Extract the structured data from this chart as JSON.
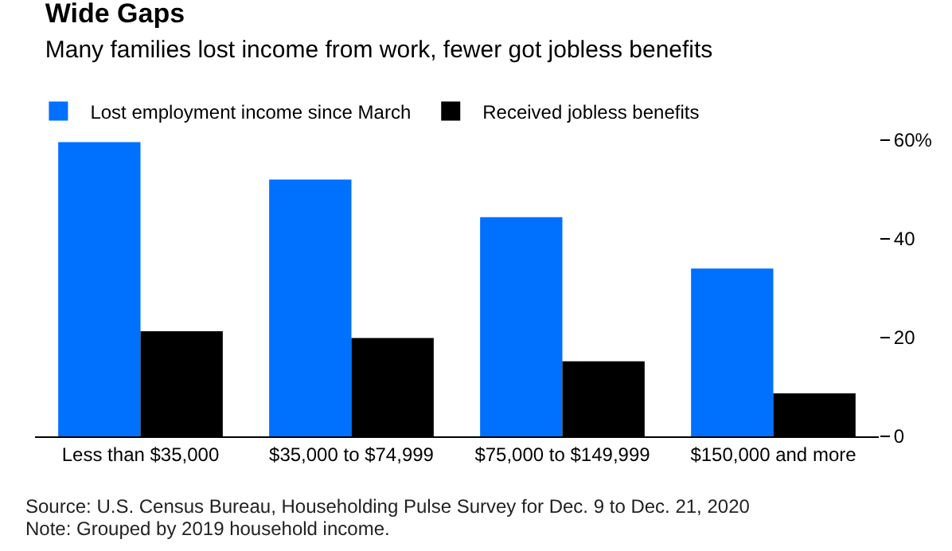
{
  "chart_data": {
    "type": "bar",
    "title": "Wide Gaps",
    "subtitle": "Many families lost income from work, fewer got jobless benefits",
    "categories": [
      "Less than $35,000",
      "$35,000 to $74,999",
      "$75,000 to $149,999",
      "$150,000 and more"
    ],
    "series": [
      {
        "name": "Lost employment income since March",
        "color": "#0070ff",
        "values": [
          59.6,
          52,
          44.4,
          34
        ]
      },
      {
        "name": "Received jobless benefits",
        "color": "#000000",
        "values": [
          21.3,
          19.9,
          15.2,
          8.7
        ]
      }
    ],
    "ylim": [
      0,
      60
    ],
    "yticks": [
      0,
      20,
      40,
      {
        "value": 60,
        "label": "60%"
      }
    ],
    "grid": false,
    "legend": "top left",
    "annotations": [
      "Source: U.S. Census Bureau, Householding Pulse Survey for Dec. 9 to Dec. 21, 2020",
      "Note: Grouped by 2019 household income."
    ]
  }
}
